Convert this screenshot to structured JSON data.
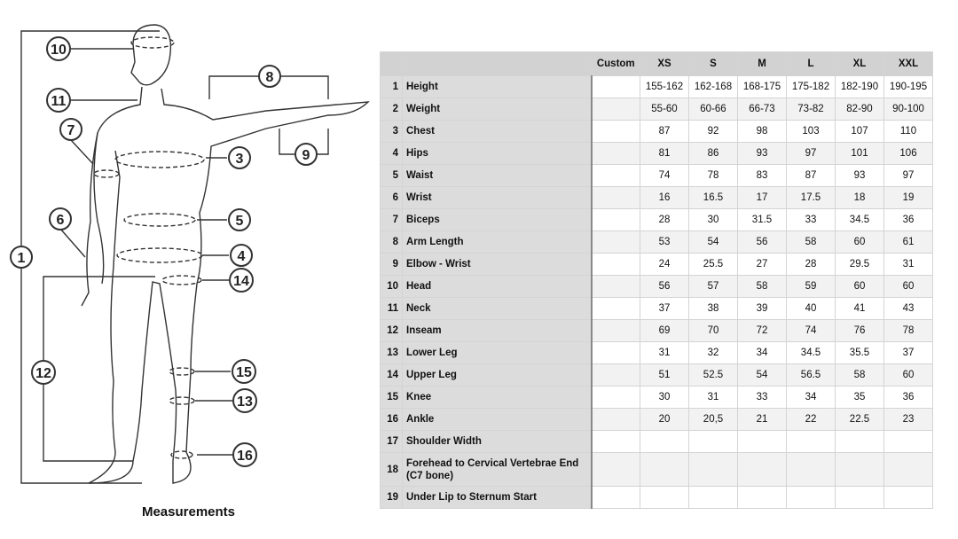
{
  "figure": {
    "caption": "Measurements",
    "callouts": [
      "1",
      "3",
      "4",
      "5",
      "6",
      "7",
      "8",
      "9",
      "10",
      "11",
      "12",
      "13",
      "14",
      "15",
      "16"
    ]
  },
  "table": {
    "headers": [
      "",
      "",
      "Custom",
      "XS",
      "S",
      "M",
      "L",
      "XL",
      "XXL"
    ],
    "rows": [
      {
        "n": "1",
        "label": "Height",
        "custom": "",
        "values": [
          "155-162",
          "162-168",
          "168-175",
          "175-182",
          "182-190",
          "190-195"
        ]
      },
      {
        "n": "2",
        "label": "Weight",
        "custom": "",
        "values": [
          "55-60",
          "60-66",
          "66-73",
          "73-82",
          "82-90",
          "90-100"
        ]
      },
      {
        "n": "3",
        "label": "Chest",
        "custom": "",
        "values": [
          "87",
          "92",
          "98",
          "103",
          "107",
          "110"
        ]
      },
      {
        "n": "4",
        "label": "Hips",
        "custom": "",
        "values": [
          "81",
          "86",
          "93",
          "97",
          "101",
          "106"
        ]
      },
      {
        "n": "5",
        "label": "Waist",
        "custom": "",
        "values": [
          "74",
          "78",
          "83",
          "87",
          "93",
          "97"
        ]
      },
      {
        "n": "6",
        "label": "Wrist",
        "custom": "",
        "values": [
          "16",
          "16.5",
          "17",
          "17.5",
          "18",
          "19"
        ]
      },
      {
        "n": "7",
        "label": "Biceps",
        "custom": "",
        "values": [
          "28",
          "30",
          "31.5",
          "33",
          "34.5",
          "36"
        ]
      },
      {
        "n": "8",
        "label": "Arm Length",
        "custom": "",
        "values": [
          "53",
          "54",
          "56",
          "58",
          "60",
          "61"
        ]
      },
      {
        "n": "9",
        "label": "Elbow - Wrist",
        "custom": "",
        "values": [
          "24",
          "25.5",
          "27",
          "28",
          "29.5",
          "31"
        ]
      },
      {
        "n": "10",
        "label": "Head",
        "custom": "",
        "values": [
          "56",
          "57",
          "58",
          "59",
          "60",
          "60"
        ]
      },
      {
        "n": "11",
        "label": "Neck",
        "custom": "",
        "values": [
          "37",
          "38",
          "39",
          "40",
          "41",
          "43"
        ]
      },
      {
        "n": "12",
        "label": "Inseam",
        "custom": "",
        "values": [
          "69",
          "70",
          "72",
          "74",
          "76",
          "78"
        ]
      },
      {
        "n": "13",
        "label": "Lower Leg",
        "custom": "",
        "values": [
          "31",
          "32",
          "34",
          "34.5",
          "35.5",
          "37"
        ]
      },
      {
        "n": "14",
        "label": "Upper Leg",
        "custom": "",
        "values": [
          "51",
          "52.5",
          "54",
          "56.5",
          "58",
          "60"
        ]
      },
      {
        "n": "15",
        "label": "Knee",
        "custom": "",
        "values": [
          "30",
          "31",
          "33",
          "34",
          "35",
          "36"
        ]
      },
      {
        "n": "16",
        "label": "Ankle",
        "custom": "",
        "values": [
          "20",
          "20,5",
          "21",
          "22",
          "22.5",
          "23"
        ]
      },
      {
        "n": "17",
        "label": "Shoulder Width",
        "custom": "",
        "values": [
          "",
          "",
          "",
          "",
          "",
          ""
        ]
      },
      {
        "n": "18",
        "label": "Forehead to Cervical Vertebrae End (C7 bone)",
        "custom": "",
        "values": [
          "",
          "",
          "",
          "",
          "",
          ""
        ]
      },
      {
        "n": "19",
        "label": "Under Lip to Sternum Start",
        "custom": "",
        "values": [
          "",
          "",
          "",
          "",
          "",
          ""
        ]
      }
    ]
  }
}
